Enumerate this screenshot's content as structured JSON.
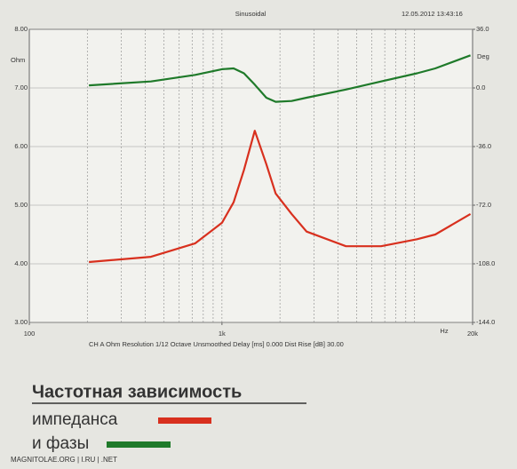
{
  "chart_data": {
    "type": "line",
    "title": "Sinusoidal",
    "timestamp": "12.05.2012 13:43:16",
    "ylabel": "Ohm",
    "y2label": "Deg",
    "xlabel": "Hz",
    "settings_caption": "CH A   Ohm   Resolution 1/12 Octave   Unsmoothed   Delay [ms] 0.000   Dist Rise [dB] 30.00",
    "xscale": "log",
    "xlim": [
      100,
      20000
    ],
    "xticks": [
      100,
      {
        "value": 1000,
        "label": "1k"
      },
      {
        "value": 20000,
        "label": "20k"
      }
    ],
    "xgrid": [
      200,
      300,
      400,
      500,
      600,
      700,
      800,
      900,
      1000,
      2000,
      3000,
      4000,
      5000,
      6000,
      7000,
      8000,
      9000,
      10000
    ],
    "ylim": [
      3,
      8
    ],
    "yticks": [
      {
        "value": 3,
        "label": "3.00"
      },
      {
        "value": 4,
        "label": "4.00"
      },
      {
        "value": 5,
        "label": "5.00"
      },
      {
        "value": 6,
        "label": "6.00"
      },
      {
        "value": 7,
        "label": "7.00"
      },
      {
        "value": 8,
        "label": "8.00"
      }
    ],
    "y2lim": [
      -144,
      36
    ],
    "y2ticks": [
      {
        "value": -144,
        "label": "-144.0"
      },
      {
        "value": -108,
        "label": "-108.0"
      },
      {
        "value": -72,
        "label": "-72.0"
      },
      {
        "value": -36,
        "label": "-36.0"
      },
      {
        "value": 0,
        "label": "0.0"
      },
      {
        "value": 36,
        "label": "36.0"
      }
    ],
    "grid": true,
    "legend_title": "Частотная зависимость",
    "x": [
      204,
      428,
      727,
      1000,
      1150,
      1300,
      1480,
      1700,
      1900,
      2300,
      2750,
      4400,
      6700,
      10300,
      12800,
      19500
    ],
    "series": [
      {
        "name": "импеданса",
        "color": "#d8301e",
        "values": [
          4.03,
          4.12,
          4.35,
          4.7,
          5.05,
          5.6,
          6.27,
          5.7,
          5.2,
          4.85,
          4.55,
          4.3,
          4.3,
          4.42,
          4.5,
          4.85
        ]
      },
      {
        "name": "и фазы",
        "color": "#1f7a2a",
        "axis": "y2",
        "values": [
          1.6,
          4,
          8,
          11.5,
          12,
          9,
          2,
          -6,
          -8.5,
          -8,
          -6,
          -1,
          4,
          9,
          12,
          20
        ]
      }
    ]
  },
  "watermark": "MAGNITOLAE.ORG | I.RU | .NET"
}
